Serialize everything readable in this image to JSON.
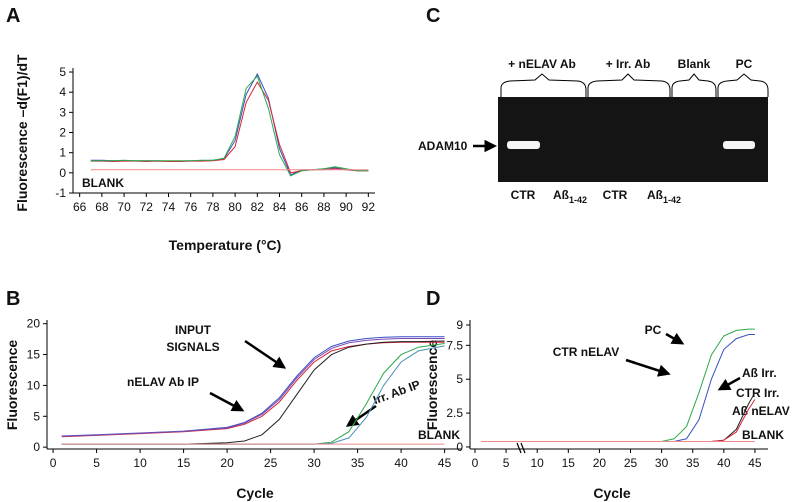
{
  "chart_data": [
    {
      "type": "line",
      "panel": "A",
      "xlabel": "Temperature (°C)",
      "ylabel": "Fluorescence –d(F1)/dT",
      "xlim": [
        65.4,
        92.6
      ],
      "ylim": [
        -1,
        5.2
      ],
      "xticks": [
        66,
        68,
        70,
        72,
        74,
        76,
        78,
        80,
        82,
        84,
        86,
        88,
        90,
        92
      ],
      "yticks": [
        -1,
        0,
        1,
        2,
        3,
        4,
        5
      ],
      "x": [
        67,
        68,
        69,
        70,
        71,
        72,
        73,
        74,
        75,
        76,
        77,
        78,
        79,
        80,
        81,
        82,
        83,
        84,
        85,
        86,
        87,
        88,
        89,
        90,
        91,
        92
      ],
      "series": [
        {
          "color": "#3a4fc4",
          "values": [
            0.62,
            0.62,
            0.6,
            0.6,
            0.6,
            0.6,
            0.6,
            0.58,
            0.58,
            0.6,
            0.6,
            0.62,
            0.7,
            1.6,
            3.9,
            4.9,
            3.7,
            1.2,
            -0.1,
            0.15,
            0.15,
            0.2,
            0.25,
            0.15,
            0.1,
            0.1
          ]
        },
        {
          "color": "#d8243a",
          "values": [
            0.58,
            0.58,
            0.56,
            0.58,
            0.58,
            0.56,
            0.58,
            0.56,
            0.56,
            0.58,
            0.58,
            0.6,
            0.66,
            1.3,
            3.5,
            4.5,
            3.6,
            1.4,
            0.0,
            0.1,
            0.15,
            0.15,
            0.2,
            0.15,
            0.1,
            0.1
          ]
        },
        {
          "color": "#2ea84a",
          "values": [
            0.6,
            0.6,
            0.6,
            0.62,
            0.6,
            0.6,
            0.6,
            0.6,
            0.6,
            0.6,
            0.62,
            0.62,
            0.72,
            1.8,
            4.2,
            4.8,
            3.2,
            0.9,
            -0.15,
            0.1,
            0.15,
            0.2,
            0.3,
            0.2,
            0.1,
            0.1
          ]
        },
        {
          "color": "#f08a8a",
          "values": [
            0.15,
            0.15,
            0.15,
            0.15,
            0.15,
            0.15,
            0.15,
            0.15,
            0.15,
            0.15,
            0.15,
            0.15,
            0.15,
            0.15,
            0.15,
            0.15,
            0.15,
            0.15,
            0.15,
            0.15,
            0.15,
            0.15,
            0.15,
            0.15,
            0.15,
            0.15
          ]
        }
      ],
      "annotations": [
        "BLANK"
      ]
    },
    {
      "type": "line",
      "panel": "B",
      "xlabel": "Cycle",
      "ylabel": "Fluorescence",
      "xlim": [
        -0.7,
        47
      ],
      "ylim": [
        -0.3,
        20.6
      ],
      "xticks": [
        0,
        5,
        10,
        15,
        20,
        25,
        30,
        35,
        40,
        45
      ],
      "yticks": [
        0,
        5,
        10,
        15,
        20
      ],
      "x": [
        1,
        5,
        10,
        15,
        20,
        22,
        24,
        26,
        28,
        30,
        32,
        34,
        36,
        38,
        40,
        42,
        45
      ],
      "series": [
        {
          "color": "#3a4fc4",
          "values": [
            1.8,
            2.0,
            2.3,
            2.6,
            3.2,
            4.0,
            5.5,
            8.0,
            11.5,
            14.5,
            16.3,
            17.2,
            17.6,
            17.8,
            17.9,
            17.9,
            17.9
          ]
        },
        {
          "color": "#d8243a",
          "values": [
            1.7,
            1.9,
            2.2,
            2.5,
            3.0,
            3.7,
            5.0,
            7.3,
            10.8,
            13.8,
            15.6,
            16.3,
            16.7,
            16.9,
            17,
            17,
            17
          ]
        },
        {
          "color": "#7a4bb0",
          "values": [
            1.75,
            1.95,
            2.25,
            2.55,
            3.1,
            3.9,
            5.3,
            7.7,
            11.2,
            14.2,
            16.0,
            16.9,
            17.3,
            17.5,
            17.6,
            17.6,
            17.6
          ]
        },
        {
          "color": "#222222",
          "values": [
            0.5,
            0.5,
            0.5,
            0.5,
            0.7,
            1.0,
            2.0,
            4.5,
            8.5,
            12.5,
            15,
            16.2,
            16.7,
            17,
            17.1,
            17.1,
            17.2
          ]
        },
        {
          "color": "#2ea84a",
          "values": [
            0.5,
            0.5,
            0.5,
            0.5,
            0.5,
            0.5,
            0.5,
            0.5,
            0.5,
            0.5,
            0.8,
            2.5,
            7,
            12,
            15,
            16.2,
            16.8
          ]
        },
        {
          "color": "#4a90b8",
          "values": [
            0.5,
            0.5,
            0.5,
            0.5,
            0.5,
            0.5,
            0.5,
            0.5,
            0.5,
            0.5,
            0.6,
            1.5,
            4.8,
            10,
            13.8,
            15.6,
            16.4
          ]
        },
        {
          "color": "#f08a8a",
          "values": [
            0.5,
            0.5,
            0.5,
            0.5,
            0.5,
            0.5,
            0.5,
            0.5,
            0.5,
            0.5,
            0.5,
            0.5,
            0.5,
            0.5,
            0.5,
            0.5,
            0.5
          ]
        }
      ],
      "annotations": [
        "INPUT",
        "SIGNALS",
        "nELAV Ab IP",
        "Irr. Ab IP",
        "BLANK"
      ]
    },
    {
      "type": "line",
      "panel": "D",
      "xlabel": "Cycle",
      "ylabel": "Fluorescence",
      "xlim": [
        -0.8,
        47.1
      ],
      "ylim": [
        -0.15,
        9.37
      ],
      "xticks": [
        0,
        5,
        10,
        15,
        20,
        25,
        30,
        35,
        40,
        45
      ],
      "yticks": [
        0,
        2.5,
        5,
        7.5,
        9
      ],
      "x": [
        1,
        5,
        10,
        15,
        20,
        25,
        30,
        32,
        34,
        36,
        38,
        40,
        42,
        44,
        45
      ],
      "series": [
        {
          "color": "#2ea84a",
          "values": [
            0.4,
            0.4,
            0.4,
            0.4,
            0.4,
            0.4,
            0.4,
            0.6,
            1.5,
            4,
            6.8,
            8.2,
            8.6,
            8.7,
            8.7
          ]
        },
        {
          "color": "#3a4fc4",
          "values": [
            0.4,
            0.4,
            0.4,
            0.4,
            0.4,
            0.4,
            0.4,
            0.4,
            0.6,
            2,
            5,
            7.2,
            8,
            8.3,
            8.3
          ]
        },
        {
          "color": "#222222",
          "values": [
            0.4,
            0.4,
            0.4,
            0.4,
            0.4,
            0.4,
            0.4,
            0.4,
            0.4,
            0.4,
            0.4,
            0.5,
            1.3,
            3.2,
            4
          ]
        },
        {
          "color": "#d8243a",
          "values": [
            0.4,
            0.4,
            0.4,
            0.4,
            0.4,
            0.4,
            0.4,
            0.4,
            0.4,
            0.4,
            0.4,
            0.5,
            1.1,
            2.8,
            3.5
          ]
        },
        {
          "color": "#f08a8a",
          "values": [
            0.4,
            0.4,
            0.4,
            0.4,
            0.4,
            0.4,
            0.4,
            0.4,
            0.4,
            0.4,
            0.4,
            0.4,
            0.4,
            0.4,
            0.4
          ]
        }
      ],
      "annotations": [
        "PC",
        "CTR nELAV",
        "Aß Irr.",
        "CTR Irr.",
        "Aß nELAV",
        "BLANK"
      ]
    }
  ],
  "gel": {
    "panel": "C",
    "groups": [
      "+ nELAV Ab",
      "+ Irr. Ab",
      "Blank",
      "PC"
    ],
    "band_label": "ADAM10",
    "lanes": [
      {
        "label": "CTR"
      },
      {
        "label": "Aß",
        "subscript": "1-42"
      },
      {
        "label": "CTR"
      },
      {
        "label": "Aß",
        "subscript": "1-42"
      }
    ]
  }
}
